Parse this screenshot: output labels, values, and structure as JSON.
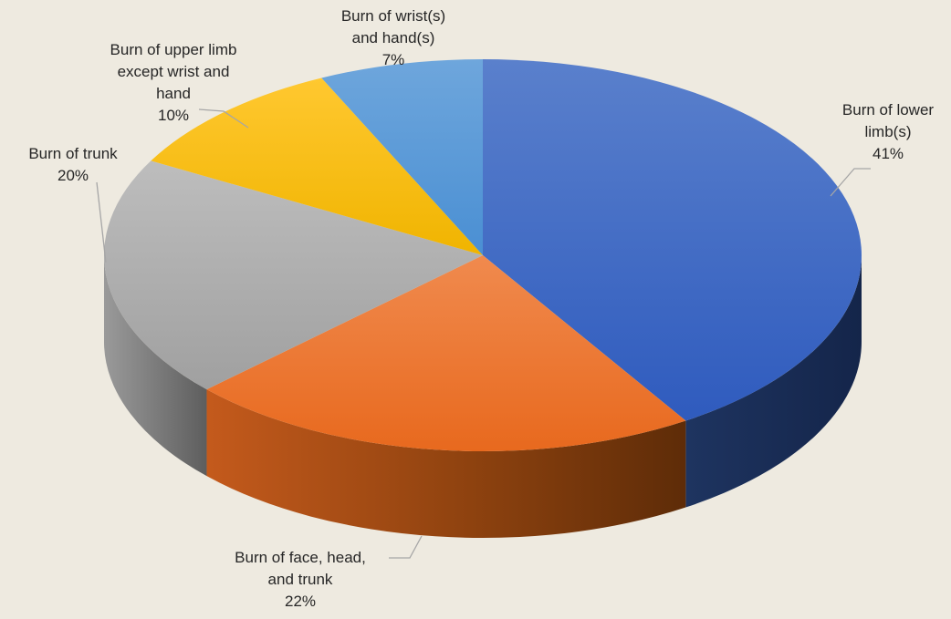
{
  "chart_data": {
    "type": "pie",
    "title": "",
    "categories": [
      "Burn of lower limb(s)",
      "Burn of face, head, and trunk",
      "Burn of trunk",
      "Burn of upper limb except wrist and hand",
      "Burn of wrist(s) and hand(s)"
    ],
    "values": [
      41,
      22,
      20,
      10,
      7
    ],
    "value_labels": [
      "41%",
      "22%",
      "20%",
      "10%",
      "7%"
    ],
    "label_lines": [
      [
        "Burn of lower",
        "limb(s)",
        "41%"
      ],
      [
        "Burn of face, head,",
        "and trunk",
        "22%"
      ],
      [
        "Burn of trunk",
        "20%"
      ],
      [
        "Burn of upper limb",
        "except wrist and",
        "hand",
        "10%"
      ],
      [
        "Burn of wrist(s)",
        "and hand(s)",
        "7%"
      ]
    ],
    "colors": [
      "#4472C4",
      "#ED7D31",
      "#A5A5A5",
      "#FFC000",
      "#5B9BD5"
    ],
    "style": "3d-pie",
    "legend": "none"
  }
}
